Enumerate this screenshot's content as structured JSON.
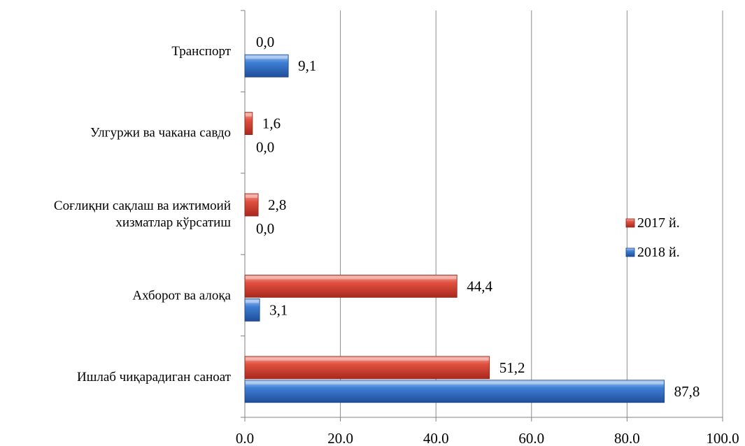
{
  "chart_data": {
    "type": "bar",
    "orientation": "horizontal",
    "categories": [
      [
        "Транспорт"
      ],
      [
        "Улгуржи ва чакана савдо"
      ],
      [
        "Соғлиқни сақлаш ва ижтимоий",
        "хизматлар кўрсатиш"
      ],
      [
        "Ахборот ва алоқа"
      ],
      [
        "Ишлаб чиқарадиган саноат"
      ]
    ],
    "series": [
      {
        "name": "2017 й.",
        "color": "#c0392b",
        "values": [
          0.0,
          1.6,
          2.8,
          44.4,
          51.2
        ],
        "labels": [
          "0,0",
          "1,6",
          "2,8",
          "44,4",
          "51,2"
        ]
      },
      {
        "name": "2018 й.",
        "color": "#2e6bc4",
        "values": [
          9.1,
          0.0,
          0.0,
          3.1,
          87.8
        ],
        "labels": [
          "9,1",
          "0,0",
          "0,0",
          "3,1",
          "87,8"
        ]
      }
    ],
    "xlim": [
      0,
      100
    ],
    "xticks": [
      "0.0",
      "20.0",
      "40.0",
      "60.0",
      "80.0",
      "100.0"
    ],
    "grid": true,
    "legend_position": "right"
  }
}
